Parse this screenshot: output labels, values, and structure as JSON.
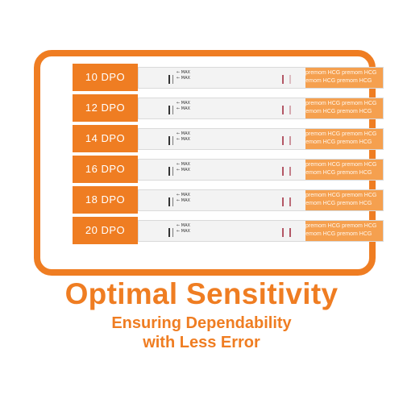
{
  "strips": [
    {
      "label": "10 DPO"
    },
    {
      "label": "12 DPO"
    },
    {
      "label": "14 DPO"
    },
    {
      "label": "16 DPO"
    },
    {
      "label": "18 DPO"
    },
    {
      "label": "20 DPO"
    }
  ],
  "strip_text": {
    "max_label": "MAX",
    "brand": "premom",
    "test": "HCG"
  },
  "headline": "Optimal Sensitivity",
  "subheadline_1": "Ensuring Dependability",
  "subheadline_2": "with Less Error",
  "colors": {
    "accent": "#ef7d22",
    "strip_band": "#f5a04f",
    "test_line": "#b35665"
  }
}
